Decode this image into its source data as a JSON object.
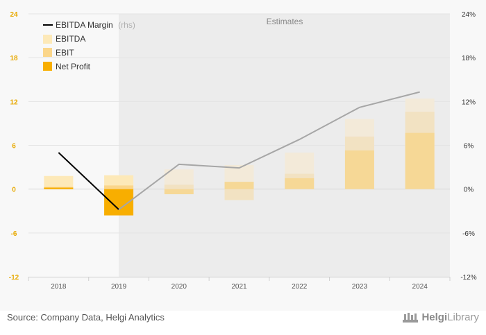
{
  "chart_data": {
    "type": "bar",
    "categories": [
      "2018",
      "2019",
      "2020",
      "2021",
      "2022",
      "2023",
      "2024"
    ],
    "estimates_label": "Estimates",
    "estimates_from": "2020",
    "left_axis": {
      "ylim": [
        -12,
        24
      ],
      "ticks": [
        "-12",
        "-6",
        "0",
        "6",
        "12",
        "18",
        "24"
      ]
    },
    "right_axis": {
      "ylim": [
        -12,
        24
      ],
      "ticks": [
        "-12%",
        "-6%",
        "0%",
        "6%",
        "12%",
        "18%",
        "24%"
      ]
    },
    "series": [
      {
        "name": "EBITDA",
        "kind": "bar",
        "values": [
          1.8,
          1.9,
          2.7,
          3.3,
          5.0,
          9.6,
          12.4
        ]
      },
      {
        "name": "EBIT",
        "kind": "bar",
        "values": [
          0.3,
          0.5,
          0.6,
          -1.5,
          2.1,
          7.2,
          10.6
        ]
      },
      {
        "name": "Net Profit",
        "kind": "bar",
        "values": [
          0.2,
          -3.6,
          -0.7,
          1.0,
          1.5,
          5.3,
          7.7
        ]
      },
      {
        "name": "EBITDA Margin",
        "suffix": "(rhs)",
        "kind": "line",
        "axis": "right",
        "values": [
          5.0,
          -2.8,
          3.4,
          2.9,
          6.8,
          11.2,
          13.3
        ]
      }
    ],
    "colors": {
      "ebitda": "#fde9b8",
      "ebitda_est": "#f3ead9",
      "ebit": "#fbd68a",
      "ebit_est": "#f2e2c2",
      "net_profit": "#f8ae00",
      "net_profit_est": "#f6d896",
      "line_actual": "#000000",
      "line_est": "#a6a6a6",
      "shade": "#ececec",
      "left_axis": "#e8a900"
    },
    "legend": {
      "position": "top-left"
    }
  },
  "footer": {
    "source": "Source: Company Data, Helgi Analytics",
    "brand_part1": "Helgi",
    "brand_part2": "Library"
  }
}
